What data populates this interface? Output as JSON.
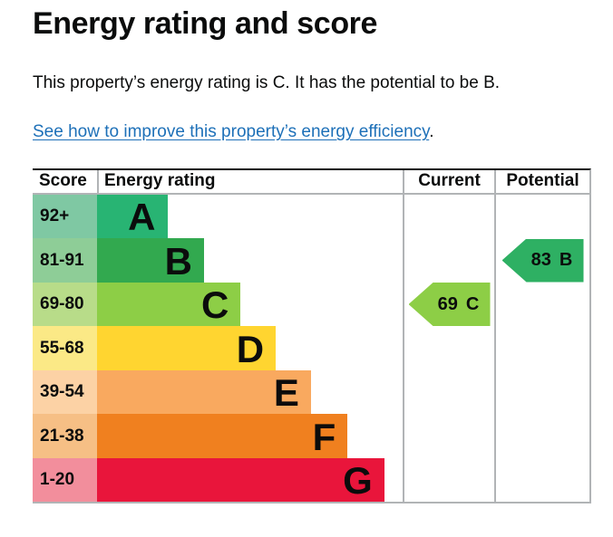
{
  "page": {
    "title": "Energy rating and score",
    "summary": "This property’s energy rating is C. It has the potential to be B.",
    "improve_link": {
      "text": "See how to improve this property’s energy efficiency",
      "suffix": ".",
      "color": "#1d70b8"
    }
  },
  "table": {
    "headers": {
      "score": "Score",
      "rating": "Energy rating",
      "current": "Current",
      "potential": "Potential"
    },
    "bands": [
      {
        "letter": "A",
        "score": "92+",
        "band_color": "#28b473",
        "score_color": "#7fc8a3",
        "width_pct": 23
      },
      {
        "letter": "B",
        "score": "81-91",
        "band_color": "#32a94f",
        "score_color": "#8ecd97",
        "width_pct": 35
      },
      {
        "letter": "C",
        "score": "69-80",
        "band_color": "#8dce46",
        "score_color": "#b8dc89",
        "width_pct": 47
      },
      {
        "letter": "D",
        "score": "55-68",
        "band_color": "#ffd530",
        "score_color": "#fbe986",
        "width_pct": 58.5
      },
      {
        "letter": "E",
        "score": "39-54",
        "band_color": "#f9a95f",
        "score_color": "#fcd2a5",
        "width_pct": 70
      },
      {
        "letter": "F",
        "score": "21-38",
        "band_color": "#f0801f",
        "score_color": "#f6bf85",
        "width_pct": 82
      },
      {
        "letter": "G",
        "score": "1-20",
        "band_color": "#e9153b",
        "score_color": "#f28e9c",
        "width_pct": 94
      }
    ],
    "current": {
      "value": "69",
      "letter": "C",
      "band_index": 2,
      "color": "#8dce46"
    },
    "potential": {
      "value": "83",
      "letter": "B",
      "band_index": 1,
      "color": "#2eb063"
    }
  },
  "chart_data": {
    "type": "bar",
    "title": "Energy rating and score",
    "categories": [
      "A",
      "B",
      "C",
      "D",
      "E",
      "F",
      "G"
    ],
    "score_ranges": [
      "92+",
      "81-91",
      "69-80",
      "55-68",
      "39-54",
      "21-38",
      "1-20"
    ],
    "bar_lengths_pct_of_column": [
      23,
      35,
      47,
      58.5,
      70,
      82,
      94
    ],
    "band_colors": [
      "#28b473",
      "#32a94f",
      "#8dce46",
      "#ffd530",
      "#f9a95f",
      "#f0801f",
      "#e9153b"
    ],
    "markers": [
      {
        "name": "Current",
        "score": 69,
        "band": "C"
      },
      {
        "name": "Potential",
        "score": 83,
        "band": "B"
      }
    ],
    "legend_position": "none",
    "grid": false
  }
}
